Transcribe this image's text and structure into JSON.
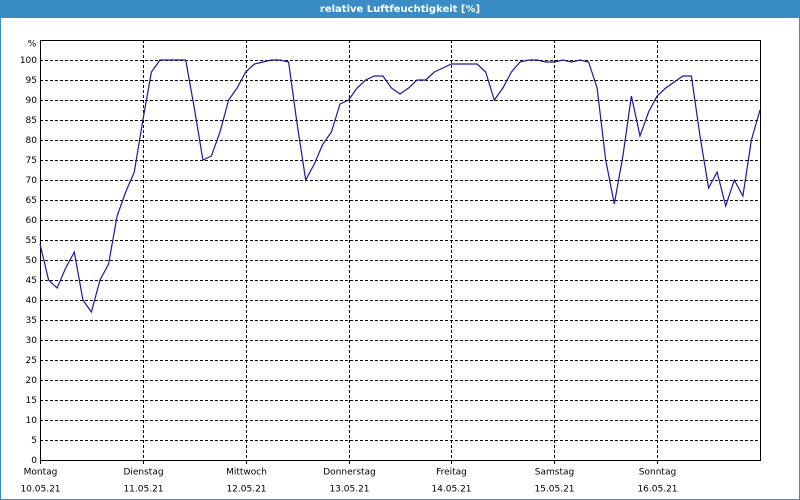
{
  "chart_data": {
    "type": "line",
    "title": "relative Luftfeuchtigkeit [%]",
    "y_label": "%",
    "x": [
      0,
      2,
      4,
      6,
      8,
      10,
      12,
      14,
      16,
      18,
      20,
      22,
      24,
      26,
      28,
      30,
      32,
      34,
      36,
      38,
      40,
      42,
      44,
      46,
      48,
      50,
      52,
      54,
      56,
      58,
      60,
      62,
      64,
      66,
      68,
      70,
      72,
      74,
      76,
      78,
      80,
      82,
      84,
      86,
      88,
      90,
      92,
      94,
      96,
      98,
      100,
      102,
      104,
      106,
      108,
      110,
      112,
      114,
      116,
      118,
      120,
      122,
      124,
      126,
      128,
      130,
      132,
      134,
      136,
      138,
      140,
      142,
      144,
      146,
      148,
      150,
      152,
      154,
      156,
      158,
      160,
      162,
      164,
      166,
      168
    ],
    "series": [
      {
        "name": "relative Luftfeuchtigkeit",
        "color": "#1a1aa0",
        "values": [
          54,
          45,
          43,
          48,
          52,
          40,
          37,
          45,
          49,
          61,
          67,
          72,
          85,
          97,
          100,
          100,
          100,
          100,
          88,
          75,
          76,
          82,
          90,
          93,
          97,
          99,
          99.5,
          100,
          100,
          99.5,
          84,
          70,
          74,
          79,
          82,
          89,
          90,
          93,
          95,
          96,
          96,
          93,
          91.5,
          93,
          95,
          95,
          97,
          98,
          99,
          99,
          99,
          99,
          97,
          90,
          93,
          97,
          99.5,
          100,
          100,
          99.5,
          99.5,
          100,
          99.5,
          100,
          99.5,
          93,
          75,
          64,
          76,
          91,
          81,
          87,
          91,
          93,
          94.5,
          96,
          96,
          81,
          68,
          72,
          63.5,
          70,
          66,
          80,
          87.5
        ]
      }
    ],
    "xlim": [
      0,
      168
    ],
    "xticks": [
      {
        "value": 0,
        "label": "Montag"
      },
      {
        "value": 24,
        "label": "Dienstag"
      },
      {
        "value": 48,
        "label": "Mittwoch"
      },
      {
        "value": 72,
        "label": "Donnerstag"
      },
      {
        "value": 96,
        "label": "Freitag"
      },
      {
        "value": 120,
        "label": "Samstag"
      },
      {
        "value": 144,
        "label": "Sonntag"
      }
    ],
    "xtick_dates": [
      "10.05.21",
      "11.05.21",
      "12.05.21",
      "13.05.21",
      "14.05.21",
      "15.05.21",
      "16.05.21"
    ],
    "ylim": [
      0,
      105
    ],
    "yticks": [
      0,
      5,
      10,
      15,
      20,
      25,
      30,
      35,
      40,
      45,
      50,
      55,
      60,
      65,
      70,
      75,
      80,
      85,
      90,
      95,
      100
    ],
    "grid": true
  }
}
